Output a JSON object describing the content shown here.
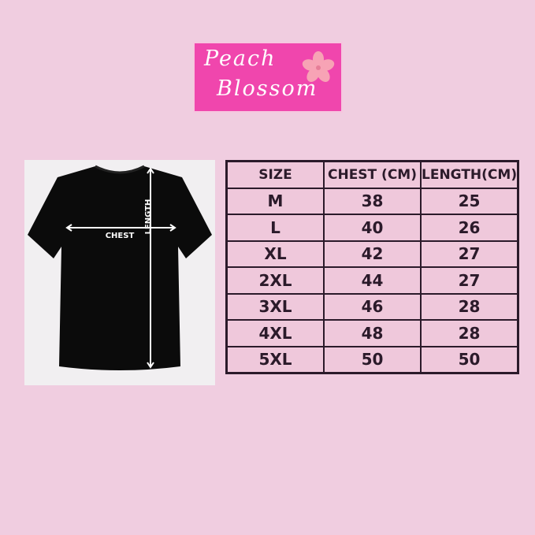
{
  "logo": {
    "line1": "Peach",
    "line2": "Blossom",
    "color": "#f046ad"
  },
  "diagram": {
    "chest_label": "CHEST",
    "length_label": "LENGTH"
  },
  "table": {
    "headers": [
      "SIZE",
      "CHEST (CM)",
      "LENGTH(CM)"
    ],
    "rows": [
      [
        "M",
        "38",
        "25"
      ],
      [
        "L",
        "40",
        "26"
      ],
      [
        "XL",
        "42",
        "27"
      ],
      [
        "2XL",
        "44",
        "27"
      ],
      [
        "3XL",
        "46",
        "28"
      ],
      [
        "4XL",
        "48",
        "28"
      ],
      [
        "5XL",
        "50",
        "50"
      ]
    ]
  }
}
